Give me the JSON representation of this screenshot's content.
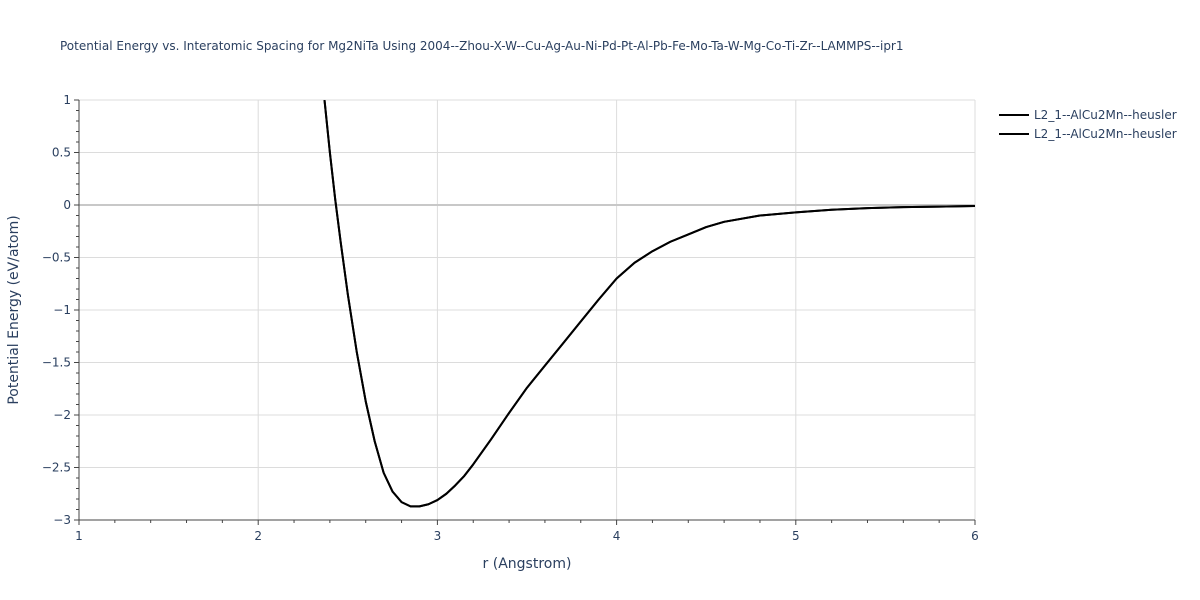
{
  "chart_data": {
    "type": "line",
    "title": "Potential Energy vs. Interatomic Spacing for Mg2NiTa Using 2004--Zhou-X-W--Cu-Ag-Au-Ni-Pd-Pt-Al-Pb-Fe-Mo-Ta-W-Mg-Co-Ti-Zr--LAMMPS--ipr1",
    "xlabel": "r (Angstrom)",
    "ylabel": "Potential Energy (eV/atom)",
    "xlim": [
      1,
      6
    ],
    "ylim": [
      -3,
      1
    ],
    "x_ticks": [
      1,
      2,
      3,
      4,
      5,
      6
    ],
    "x_tick_labels": [
      "1",
      "2",
      "3",
      "4",
      "5",
      "6"
    ],
    "y_ticks": [
      1,
      0.5,
      0,
      -0.5,
      -1,
      -1.5,
      -2,
      -2.5,
      -3
    ],
    "y_tick_labels": [
      "1",
      "0.5",
      "0",
      "−0.5",
      "−1",
      "−1.5",
      "−2",
      "−2.5",
      "−3"
    ],
    "grid": true,
    "legend_position": "top-right",
    "series": [
      {
        "name": "L2_1--AlCu2Mn--heusler",
        "color": "#000000",
        "x": [
          2.37,
          2.4,
          2.43,
          2.46,
          2.5,
          2.55,
          2.6,
          2.65,
          2.7,
          2.75,
          2.8,
          2.85,
          2.9,
          2.95,
          3.0,
          3.05,
          3.1,
          3.15,
          3.2,
          3.3,
          3.4,
          3.5,
          3.6,
          3.7,
          3.8,
          3.9,
          4.0,
          4.1,
          4.2,
          4.3,
          4.4,
          4.5,
          4.6,
          4.8,
          5.0,
          5.2,
          5.4,
          5.6,
          5.8,
          6.0
        ],
        "y": [
          1.0,
          0.5,
          0.05,
          -0.35,
          -0.85,
          -1.4,
          -1.87,
          -2.25,
          -2.55,
          -2.73,
          -2.83,
          -2.87,
          -2.87,
          -2.85,
          -2.81,
          -2.75,
          -2.67,
          -2.58,
          -2.47,
          -2.23,
          -1.98,
          -1.74,
          -1.53,
          -1.32,
          -1.11,
          -0.9,
          -0.7,
          -0.55,
          -0.44,
          -0.35,
          -0.28,
          -0.21,
          -0.16,
          -0.1,
          -0.07,
          -0.045,
          -0.03,
          -0.02,
          -0.015,
          -0.01
        ]
      },
      {
        "name": "L2_1--AlCu2Mn--heusler",
        "color": "#000000",
        "x": [
          2.37,
          2.4,
          2.43,
          2.46,
          2.5,
          2.55,
          2.6,
          2.65,
          2.7,
          2.75,
          2.8,
          2.85,
          2.9,
          2.95,
          3.0,
          3.05,
          3.1,
          3.15,
          3.2,
          3.3,
          3.4,
          3.5,
          3.6,
          3.7,
          3.8,
          3.9,
          4.0,
          4.1,
          4.2,
          4.3,
          4.4,
          4.5,
          4.6,
          4.8,
          5.0,
          5.2,
          5.4,
          5.6,
          5.8,
          6.0
        ],
        "y": [
          1.0,
          0.5,
          0.05,
          -0.35,
          -0.85,
          -1.4,
          -1.87,
          -2.25,
          -2.55,
          -2.73,
          -2.83,
          -2.87,
          -2.87,
          -2.85,
          -2.81,
          -2.75,
          -2.67,
          -2.58,
          -2.47,
          -2.23,
          -1.98,
          -1.74,
          -1.53,
          -1.32,
          -1.11,
          -0.9,
          -0.7,
          -0.55,
          -0.44,
          -0.35,
          -0.28,
          -0.21,
          -0.16,
          -0.1,
          -0.07,
          -0.045,
          -0.03,
          -0.02,
          -0.015,
          -0.01
        ]
      }
    ]
  }
}
